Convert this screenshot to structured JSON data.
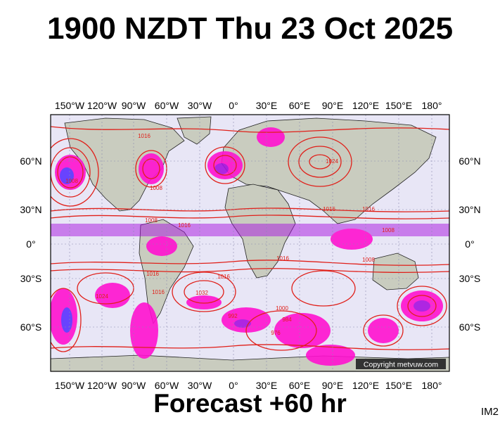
{
  "title": "1900 NZDT Thu 23 Oct 2025",
  "subtitle": "Forecast +60 hr",
  "corner_label": "IM2",
  "copyright": "Copyright metvuw.com",
  "lon_labels": [
    "150°W",
    "120°W",
    "90°W",
    "60°W",
    "30°W",
    "0°",
    "30°E",
    "60°E",
    "90°E",
    "120°E",
    "150°E",
    "180°"
  ],
  "lat_labels": [
    "60°N",
    "30°N",
    "0°",
    "30°S",
    "60°S"
  ],
  "pressure_labels": [
    "1016",
    "1008",
    "1024",
    "1016",
    "1016",
    "1008",
    "1032",
    "1016",
    "1000",
    "976",
    "984",
    "1024",
    "1008",
    "1008",
    "992",
    "1016",
    "1016",
    "1016",
    "1008",
    "1016"
  ],
  "colors": {
    "ocean": "#e8e6f6",
    "land": "#c9ccbf",
    "isobar": "#e0201a",
    "rain_heavy": "#ff10d0",
    "rain_med": "#a810e0",
    "rain_light": "#5a30ff",
    "grid": "#8a8ab0"
  }
}
